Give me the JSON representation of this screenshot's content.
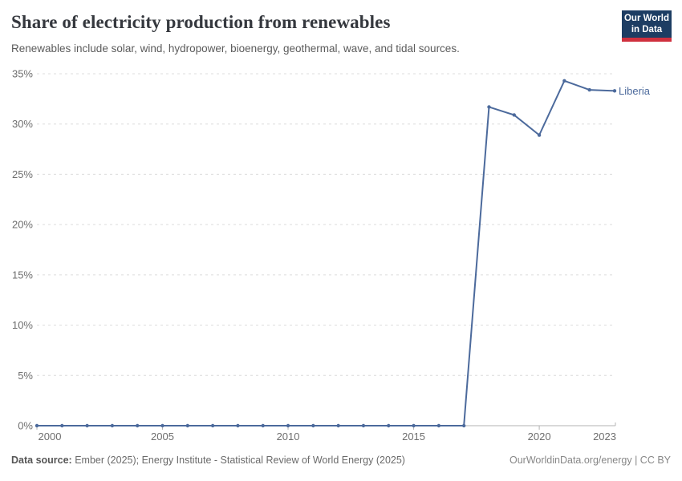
{
  "header": {
    "title": "Share of electricity production from renewables",
    "subtitle": "Renewables include solar, wind, hydropower, bioenergy, geothermal, wave, and tidal sources.",
    "logo": {
      "line1": "Our World",
      "line2": "in Data"
    }
  },
  "chart_data": {
    "type": "line",
    "title": "Share of electricity production from renewables",
    "x": [
      2000,
      2001,
      2002,
      2003,
      2004,
      2005,
      2006,
      2007,
      2008,
      2009,
      2010,
      2011,
      2012,
      2013,
      2014,
      2015,
      2016,
      2017,
      2018,
      2019,
      2020,
      2021,
      2022,
      2023
    ],
    "series": [
      {
        "name": "Liberia",
        "color": "#4c6a9c",
        "values": [
          0,
          0,
          0,
          0,
          0,
          0,
          0,
          0,
          0,
          0,
          0,
          0,
          0,
          0,
          0,
          0,
          0,
          0,
          31.7,
          30.9,
          28.9,
          34.3,
          33.4,
          33.3
        ]
      }
    ],
    "xlabel": "",
    "ylabel": "",
    "xlim": [
      2000,
      2023
    ],
    "ylim": [
      0,
      35
    ],
    "y_ticks": [
      0,
      5,
      10,
      15,
      20,
      25,
      30,
      35
    ],
    "y_tick_suffix": "%",
    "x_tick_labels": [
      2000,
      2005,
      2010,
      2015,
      2020,
      2023
    ],
    "grid": "horizontal dashed",
    "legend_position": "end-of-line label"
  },
  "footer": {
    "source_prefix": "Data source:",
    "source": " Ember (2025); Energy Institute - Statistical Review of World Energy (2025)",
    "credit": "OurWorldinData.org/energy | CC BY"
  },
  "colors": {
    "line": "#4c6a9c",
    "logo_bg": "#1d3d63",
    "logo_accent": "#cf303e",
    "gridline": "#dcdcdc",
    "axis": "#b3b3b3"
  }
}
